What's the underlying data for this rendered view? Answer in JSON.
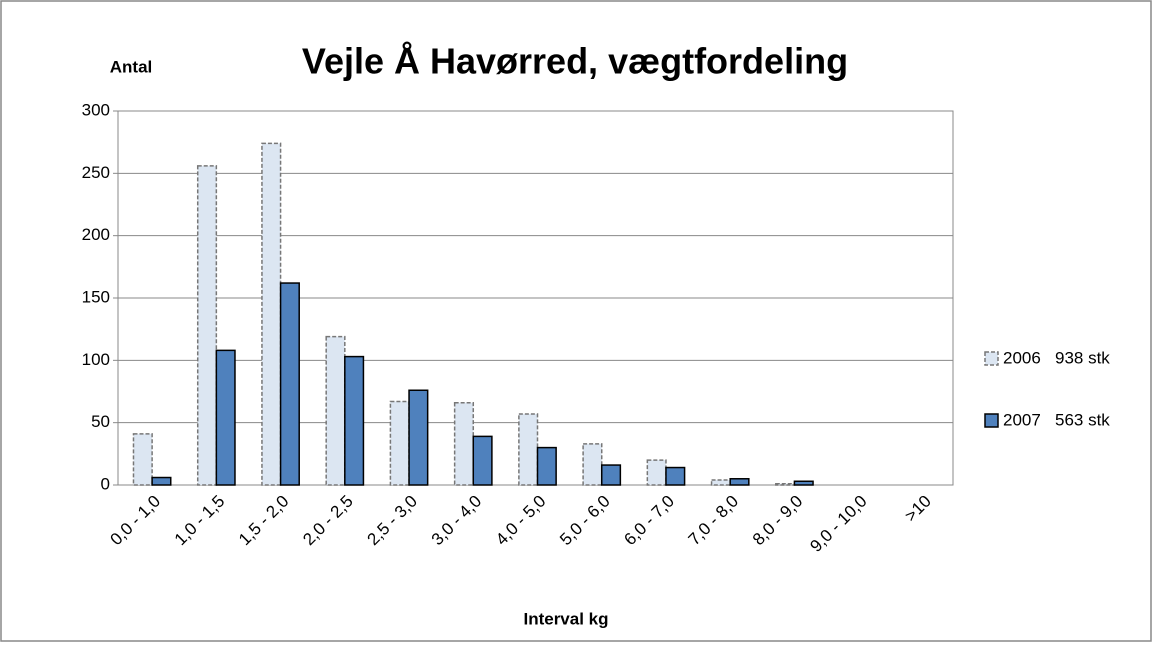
{
  "chart_data": {
    "type": "bar",
    "title": "Vejle Å Havørred, vægtfordeling",
    "y_label": "Antal",
    "x_label": "Interval kg",
    "categories": [
      "0,0 - 1,0",
      "1,0 - 1,5",
      "1,5 - 2,0",
      "2,0 - 2,5",
      "2,5 - 3,0",
      "3,0 - 4,0",
      "4,0 - 5,0",
      "5,0 - 6,0",
      "6,0 - 7,0",
      "7,0 - 8,0",
      "8,0 - 9,0",
      "9,0 - 10,0",
      ">10"
    ],
    "series": [
      {
        "name": "2006   938 stk",
        "color": "#dce6f2",
        "values": [
          41,
          256,
          274,
          119,
          67,
          66,
          57,
          33,
          20,
          4,
          1,
          0,
          0
        ]
      },
      {
        "name": "2007   563 stk",
        "color": "#4f81bd",
        "values": [
          6,
          108,
          162,
          103,
          76,
          39,
          30,
          16,
          14,
          5,
          3,
          0,
          0
        ]
      }
    ],
    "ylim": [
      0,
      300
    ],
    "yticks": [
      0,
      50,
      100,
      150,
      200,
      250,
      300
    ],
    "grid": true,
    "legend": "right"
  }
}
